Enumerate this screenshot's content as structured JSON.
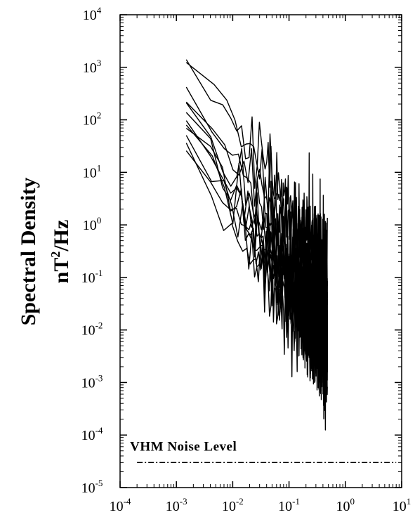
{
  "chart_data": {
    "type": "line",
    "title": "",
    "xlabel": "",
    "ylabel": "Spectral Density",
    "ylabel_unit": {
      "base": "nT",
      "exponent": "2",
      "rest": "/Hz"
    },
    "x_scale": "log",
    "y_scale": "log",
    "xlim": [
      0.0001,
      10
    ],
    "ylim": [
      1e-05,
      10000
    ],
    "grid": false,
    "legend": "none",
    "line_color": "#000000",
    "x_ticks": [
      {
        "value": 0.0001,
        "base": "10",
        "exp": "-4"
      },
      {
        "value": 0.001,
        "base": "10",
        "exp": "-3"
      },
      {
        "value": 0.01,
        "base": "10",
        "exp": "-2"
      },
      {
        "value": 0.1,
        "base": "10",
        "exp": "-1"
      },
      {
        "value": 1,
        "base": "10",
        "exp": "0"
      },
      {
        "value": 10,
        "base": "10",
        "exp": "1"
      }
    ],
    "y_ticks": [
      {
        "value": 1e-05,
        "base": "10",
        "exp": "-5"
      },
      {
        "value": 0.0001,
        "base": "10",
        "exp": "-4"
      },
      {
        "value": 0.001,
        "base": "10",
        "exp": "-3"
      },
      {
        "value": 0.01,
        "base": "10",
        "exp": "-2"
      },
      {
        "value": 0.1,
        "base": "10",
        "exp": "-1"
      },
      {
        "value": 1,
        "base": "10",
        "exp": "0"
      },
      {
        "value": 10,
        "base": "10",
        "exp": "1"
      },
      {
        "value": 100,
        "base": "10",
        "exp": "2"
      },
      {
        "value": 1000,
        "base": "10",
        "exp": "3"
      },
      {
        "value": 10000,
        "base": "10",
        "exp": "4"
      }
    ],
    "annotations": [
      {
        "text": "VHM  Noise  Level",
        "x": 0.0002,
        "y": 5e-05
      }
    ],
    "reference_lines": [
      {
        "name": "VHM Noise Level",
        "style": "dash-dot",
        "y": 3e-05,
        "x_start": 0.0002,
        "x_end": 8
      }
    ],
    "series_spectra": {
      "count": 12,
      "x_min": 0.0015,
      "x_max": 0.48,
      "spectra": [
        {
          "start_value": 2200,
          "slope": -1.6
        },
        {
          "start_value": 1200,
          "slope": -1.6
        },
        {
          "start_value": 380,
          "slope": -1.6
        },
        {
          "start_value": 250,
          "slope": -1.6
        },
        {
          "start_value": 170,
          "slope": -1.6
        },
        {
          "start_value": 120,
          "slope": -1.6
        },
        {
          "start_value": 85,
          "slope": -1.6
        },
        {
          "start_value": 60,
          "slope": -1.6
        },
        {
          "start_value": 45,
          "slope": -1.6
        },
        {
          "start_value": 35,
          "slope": -1.6
        },
        {
          "start_value": 28,
          "slope": -1.6
        },
        {
          "start_value": 20,
          "slope": -1.6
        }
      ]
    }
  }
}
